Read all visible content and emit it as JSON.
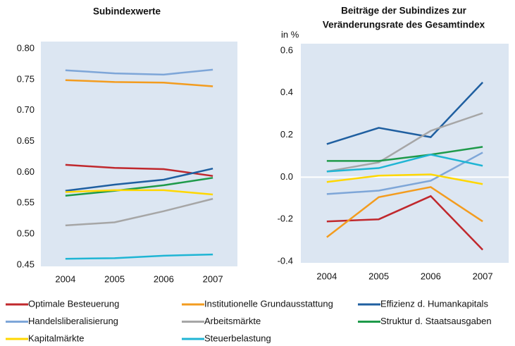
{
  "chart_data": [
    {
      "type": "line",
      "title": [
        "Subindexwerte"
      ],
      "categories": [
        "2004",
        "2005",
        "2006",
        "2007"
      ],
      "ylim": [
        0.45,
        0.8
      ],
      "yticks": [
        {
          "value": 0.8,
          "label": "0.80"
        },
        0.75,
        {
          "value": 0.7,
          "label": "0.70"
        },
        0.65,
        {
          "value": 0.6,
          "label": "0.60"
        },
        0.55,
        {
          "value": 0.5,
          "label": "0.50"
        },
        0.45
      ],
      "series": [
        {
          "name": "Optimale Besteuerung",
          "color": "#c0282d",
          "values": [
            0.612,
            0.607,
            0.605,
            0.594
          ]
        },
        {
          "name": "Institutionelle Grundausstattung",
          "color": "#f39c1f",
          "values": [
            0.749,
            0.746,
            0.745,
            0.739
          ]
        },
        {
          "name": "Effizienz d. Humankapitals",
          "color": "#1f5fa0",
          "values": [
            0.57,
            0.58,
            0.588,
            0.606
          ]
        },
        {
          "name": "Handelsliberalisierung",
          "color": "#7ea6d8",
          "values": [
            0.765,
            0.76,
            0.758,
            0.766
          ]
        },
        {
          "name": "Arbeitsmärkte",
          "color": "#a6a6a6",
          "values": [
            0.514,
            0.519,
            0.537,
            0.557
          ]
        },
        {
          "name": "Struktur d. Staatsausgaben",
          "color": "#1e9a4a",
          "values": [
            0.562,
            0.57,
            0.579,
            0.591
          ]
        },
        {
          "name": "Kapitalmärkte",
          "color": "#ffd700",
          "values": [
            0.568,
            0.571,
            0.571,
            0.564
          ]
        },
        {
          "name": "Steuerbelastung",
          "color": "#1fb5d4",
          "values": [
            0.46,
            0.461,
            0.465,
            0.467
          ]
        }
      ]
    },
    {
      "type": "line",
      "title": [
        "Beiträge der Subindizes zur",
        "Veränderungsrate des Gesamtindex"
      ],
      "y_label": "in %",
      "categories": [
        "2004",
        "2005",
        "2006",
        "2007"
      ],
      "ylim": [
        -0.4,
        0.6
      ],
      "yticks": [
        0.6,
        0.4,
        0.2,
        {
          "value": 0,
          "label": "0.0"
        },
        -0.2,
        -0.4
      ],
      "zero_line": true,
      "series": [
        {
          "color": "#c0282d",
          "values": [
            -0.21,
            -0.2,
            -0.09,
            -0.345
          ]
        },
        {
          "color": "#f39c1f",
          "values": [
            -0.285,
            -0.095,
            -0.047,
            -0.21
          ]
        },
        {
          "color": "#1f5fa0",
          "values": [
            0.157,
            0.234,
            0.19,
            0.45
          ]
        },
        {
          "color": "#7ea6d8",
          "values": [
            -0.08,
            -0.064,
            -0.017,
            0.117
          ]
        },
        {
          "color": "#a6a6a6",
          "values": [
            0.027,
            0.07,
            0.22,
            0.304
          ]
        },
        {
          "color": "#1e9a4a",
          "values": [
            0.077,
            0.077,
            0.107,
            0.144
          ]
        },
        {
          "color": "#ffd700",
          "values": [
            -0.023,
            0.007,
            0.013,
            -0.033
          ]
        },
        {
          "color": "#1fb5d4",
          "values": [
            0.027,
            0.043,
            0.107,
            0.054
          ]
        }
      ]
    }
  ]
}
